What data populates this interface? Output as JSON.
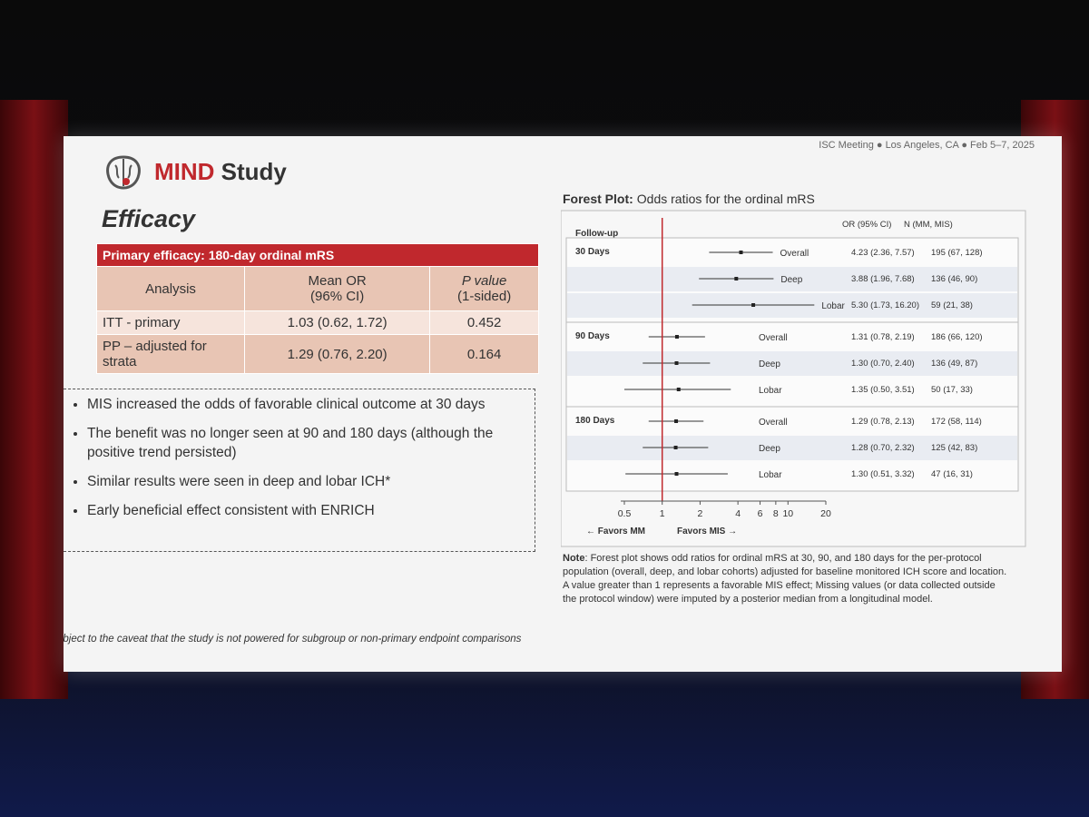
{
  "header": {
    "meeting": "ISC Meeting ● Los Angeles, CA ● Feb 5–7, 2025",
    "brand": "MIND",
    "brand_suffix": "Study"
  },
  "section_title": "Efficacy",
  "table": {
    "caption": "Primary efficacy: 180-day ordinal mRS",
    "headers": [
      [
        "Analysis"
      ],
      [
        "Mean OR",
        "(96% CI)"
      ],
      [
        "P value",
        "(1-sided)"
      ]
    ],
    "rows": [
      [
        "ITT - primary",
        "1.03 (0.62, 1.72)",
        "0.452"
      ],
      [
        "PP – adjusted for strata",
        "1.29 (0.76, 2.20)",
        "0.164"
      ]
    ]
  },
  "bullets": [
    "MIS increased the odds of favorable clinical outcome at 30 days",
    "The benefit was no longer seen at 90 and 180 days (although the positive trend persisted)",
    "Similar results were seen in deep and lobar ICH*",
    "Early beneficial effect consistent with ENRICH"
  ],
  "footnote": "(*) Subject to the caveat that the study is not powered for subgroup or non-primary endpoint comparisons",
  "forest": {
    "title_bold": "Forest Plot:",
    "title": "Odds ratios for the ordinal mRS",
    "col_followup": "Follow-up",
    "col_or": "OR (95% CI)",
    "col_n": "N (MM, MIS)",
    "log_scale": true,
    "xlim": [
      0.5,
      20
    ],
    "xticks": [
      0.5,
      1,
      2,
      4,
      6,
      8,
      10,
      20
    ],
    "reference": 1,
    "reference_color": "#c0282d",
    "favors_left": "← Favors MM",
    "favors_right": "Favors MIS →",
    "groups": [
      {
        "label": "30 Days",
        "rows": [
          {
            "name": "Overall",
            "or": 4.23,
            "ci_low": 2.36,
            "ci_high": 7.57,
            "or_label": "4.23 (2.36, 7.57)",
            "n_label": "195 (67, 128)"
          },
          {
            "name": "Deep",
            "or": 3.88,
            "ci_low": 1.96,
            "ci_high": 7.68,
            "or_label": "3.88 (1.96, 7.68)",
            "n_label": "136 (46, 90)"
          },
          {
            "name": "Lobar",
            "or": 5.3,
            "ci_low": 1.73,
            "ci_high": 16.2,
            "or_label": "5.30 (1.73, 16.20)",
            "n_label": "59 (21, 38)"
          }
        ]
      },
      {
        "label": "90 Days",
        "rows": [
          {
            "name": "Overall",
            "or": 1.31,
            "ci_low": 0.78,
            "ci_high": 2.19,
            "or_label": "1.31 (0.78, 2.19)",
            "n_label": "186 (66, 120)"
          },
          {
            "name": "Deep",
            "or": 1.3,
            "ci_low": 0.7,
            "ci_high": 2.4,
            "or_label": "1.30 (0.70, 2.40)",
            "n_label": "136 (49, 87)"
          },
          {
            "name": "Lobar",
            "or": 1.35,
            "ci_low": 0.5,
            "ci_high": 3.51,
            "or_label": "1.35 (0.50, 3.51)",
            "n_label": "50 (17, 33)"
          }
        ]
      },
      {
        "label": "180 Days",
        "rows": [
          {
            "name": "Overall",
            "or": 1.29,
            "ci_low": 0.78,
            "ci_high": 2.13,
            "or_label": "1.29 (0.78, 2.13)",
            "n_label": "172 (58, 114)"
          },
          {
            "name": "Deep",
            "or": 1.28,
            "ci_low": 0.7,
            "ci_high": 2.32,
            "or_label": "1.28 (0.70, 2.32)",
            "n_label": "125 (42, 83)"
          },
          {
            "name": "Lobar",
            "or": 1.3,
            "ci_low": 0.51,
            "ci_high": 3.32,
            "or_label": "1.30 (0.51, 3.32)",
            "n_label": "47 (16, 31)"
          }
        ]
      }
    ],
    "note_bold": "Note",
    "note": ": Forest plot shows odd ratios for ordinal mRS at 30, 90, and 180 days for the per-protocol population (overall, deep, and lobar cohorts) adjusted for baseline monitored ICH score and location. A value greater than 1 represents a favorable MIS effect; Missing values (or data collected outside the protocol window) were imputed by a posterior median from a longitudinal model."
  }
}
